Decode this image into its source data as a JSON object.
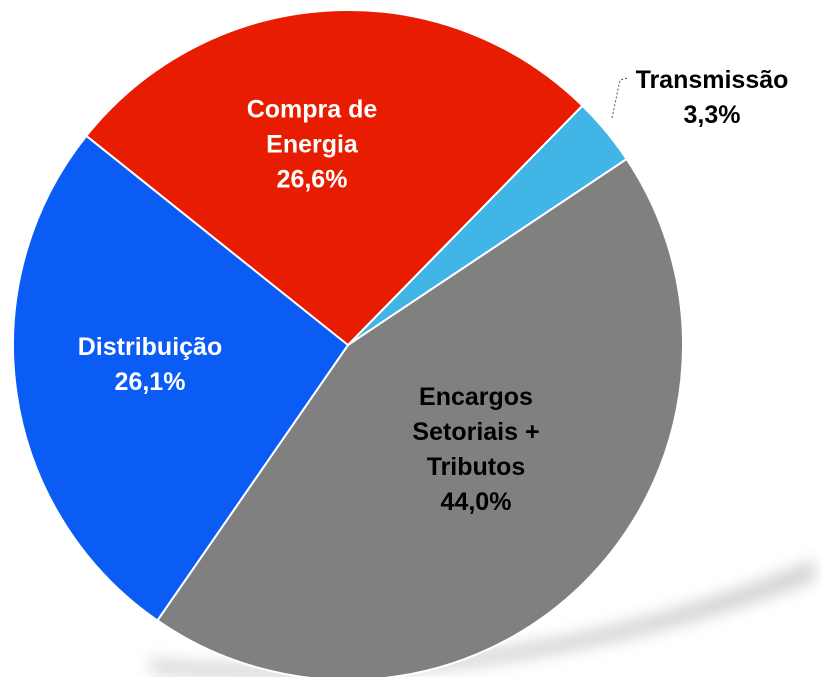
{
  "chart_data": {
    "type": "pie",
    "categories": [
      "Transmissão",
      "Encargos Setoriais + Tributos",
      "Distribuição",
      "Compra de Energia"
    ],
    "values": [
      3.3,
      44.0,
      26.1,
      26.6
    ],
    "value_labels": [
      "3,3%",
      "44,0%",
      "26,1%",
      "26,6%"
    ],
    "colors": [
      "#41b6e6",
      "#808080",
      "#0a5cf5",
      "#e81c00"
    ]
  }
}
